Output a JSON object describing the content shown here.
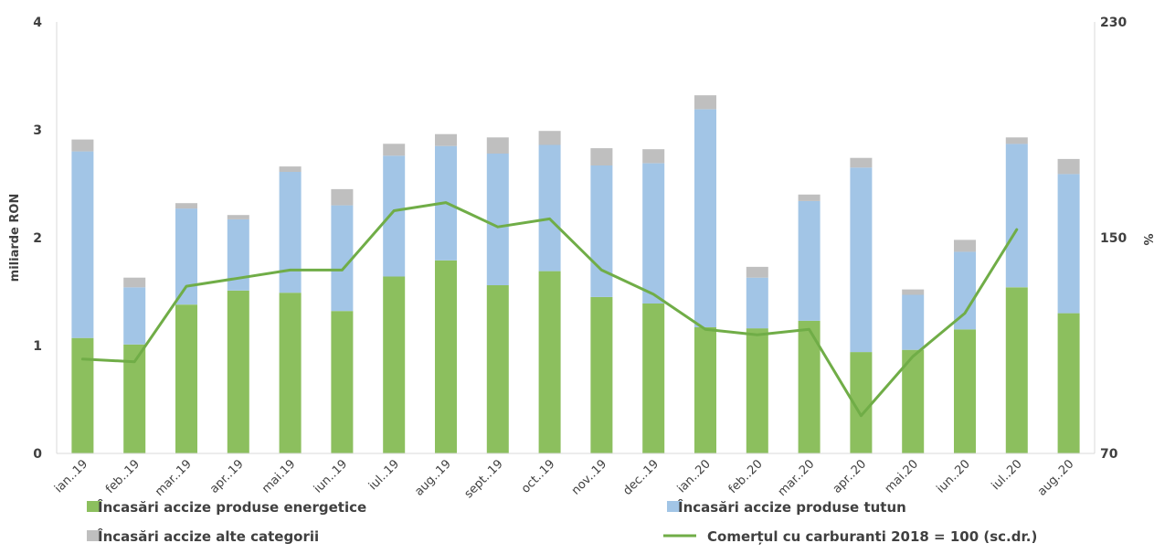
{
  "chart_data": {
    "type": "bar",
    "stacked": true,
    "categories": [
      "ian..19",
      "feb..19",
      "mar..19",
      "apr..19",
      "mai.19",
      "iun..19",
      "iul..19",
      "aug..19",
      "sept..19",
      "oct..19",
      "nov..19",
      "dec..19",
      "ian..20",
      "feb..20",
      "mar..20",
      "apr..20",
      "mai.20",
      "iun..20",
      "iul..20",
      "aug..20"
    ],
    "series": [
      {
        "name": "Încasări accize produse energetice",
        "kind": "bar",
        "axis": "left",
        "color": "#8cbf5e",
        "values": [
          1.07,
          1.01,
          1.38,
          1.51,
          1.49,
          1.32,
          1.64,
          1.79,
          1.56,
          1.69,
          1.45,
          1.39,
          1.17,
          1.16,
          1.23,
          0.94,
          0.96,
          1.15,
          1.54,
          1.3
        ]
      },
      {
        "name": "Încasări accize produse tutun",
        "kind": "bar",
        "axis": "left",
        "color": "#a2c5e6",
        "values": [
          1.73,
          0.53,
          0.89,
          0.66,
          1.12,
          0.98,
          1.12,
          1.06,
          1.22,
          1.17,
          1.22,
          1.3,
          2.02,
          0.47,
          1.11,
          1.71,
          0.51,
          0.72,
          1.33,
          1.29
        ]
      },
      {
        "name": "Încasări accize alte categorii",
        "kind": "bar",
        "axis": "left",
        "color": "#bfbfbf",
        "values": [
          0.11,
          0.09,
          0.05,
          0.04,
          0.05,
          0.15,
          0.11,
          0.11,
          0.15,
          0.13,
          0.16,
          0.13,
          0.13,
          0.1,
          0.06,
          0.09,
          0.05,
          0.11,
          0.06,
          0.14
        ]
      },
      {
        "name": "Comerțul cu carburanti 2018 = 100 (sc.dr.)",
        "kind": "line",
        "axis": "right",
        "color": "#70ad47",
        "values": [
          105,
          104,
          132,
          135,
          138,
          138,
          160,
          163,
          154,
          157,
          138,
          129,
          116,
          114,
          116,
          84,
          106,
          122,
          153,
          null
        ]
      }
    ],
    "y_left": {
      "label": "miliarde RON",
      "ylim": [
        0,
        4
      ],
      "ticks": [
        "0",
        "1",
        "2",
        "3",
        "4"
      ]
    },
    "y_right": {
      "label": "%",
      "ylim": [
        70,
        230
      ],
      "ticks": [
        "70",
        "150",
        "230"
      ]
    },
    "legend_position": "bottom",
    "grid": false
  }
}
